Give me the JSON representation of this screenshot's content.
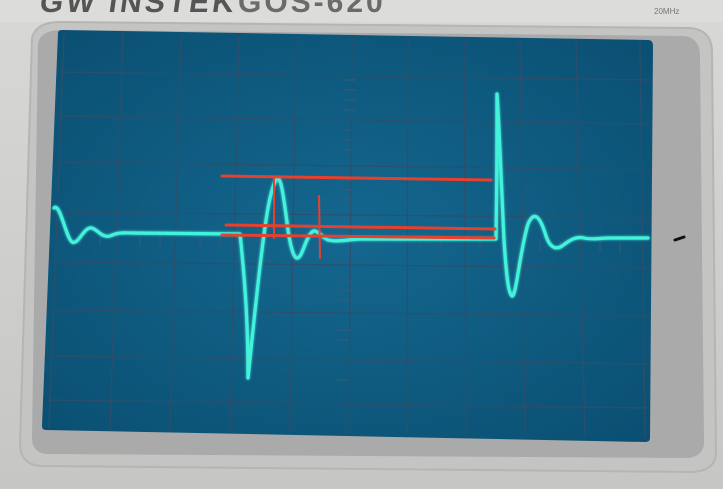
{
  "device": {
    "brand_text": "GW INSTEK",
    "model_text": "GOS-620",
    "bandwidth_text": "20MHz"
  },
  "screen": {
    "background_color": "#0d5f86",
    "grid_color": "#2e4c66",
    "divisions_x": 10,
    "divisions_y": 8,
    "trace_color": "#3ef0d8"
  },
  "annotations": {
    "color": "#e8402c",
    "horizontal_markers": 3,
    "vertical_markers": 2
  }
}
